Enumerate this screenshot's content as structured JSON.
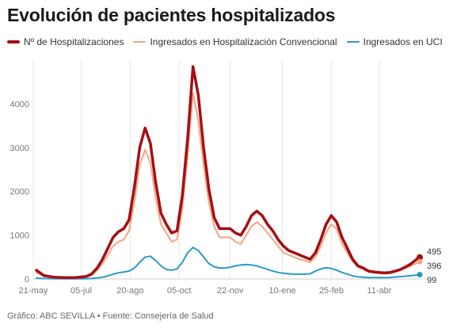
{
  "title": "Evolución de pacientes hospitalizados",
  "source": "Gráfico: ABC SEVILLA • Fuente: Consejería de Salud",
  "chart_data": {
    "type": "line",
    "title": "Evolución de pacientes hospitalizados",
    "xlabel": "",
    "ylabel": "",
    "ylim": [
      0,
      5000
    ],
    "y_ticks": [
      0,
      1000,
      2000,
      3000,
      4000
    ],
    "x_ticks": [
      {
        "label": "21-may",
        "day": 0
      },
      {
        "label": "05-jul",
        "day": 45
      },
      {
        "label": "20-ago",
        "day": 91
      },
      {
        "label": "05-oct",
        "day": 137
      },
      {
        "label": "22-nov",
        "day": 185
      },
      {
        "label": "10-ene",
        "day": 234
      },
      {
        "label": "25-feb",
        "day": 280
      },
      {
        "label": "11-abr",
        "day": 325
      }
    ],
    "grid": "vertical",
    "legend_position": "top",
    "x": [
      3,
      10,
      20,
      30,
      40,
      50,
      55,
      60,
      65,
      70,
      75,
      80,
      85,
      90,
      95,
      100,
      105,
      110,
      115,
      120,
      125,
      130,
      135,
      140,
      145,
      150,
      155,
      160,
      165,
      170,
      175,
      180,
      185,
      190,
      195,
      200,
      205,
      210,
      215,
      220,
      225,
      230,
      235,
      240,
      245,
      250,
      255,
      260,
      265,
      270,
      275,
      280,
      285,
      290,
      295,
      300,
      305,
      310,
      315,
      320,
      325,
      330,
      335,
      340,
      345,
      350,
      355,
      360,
      363
    ],
    "series": [
      {
        "name": "Nº de Hospitalizaciones",
        "color": "#a50f15",
        "values": [
          200,
          80,
          40,
          30,
          35,
          60,
          120,
          250,
          450,
          700,
          950,
          1080,
          1150,
          1350,
          2100,
          3000,
          3450,
          3100,
          2200,
          1500,
          1250,
          1050,
          1100,
          1900,
          3200,
          4850,
          4200,
          3000,
          2050,
          1400,
          1150,
          1150,
          1150,
          1050,
          1000,
          1200,
          1450,
          1550,
          1450,
          1250,
          1100,
          900,
          750,
          650,
          600,
          550,
          500,
          450,
          600,
          900,
          1250,
          1450,
          1300,
          950,
          700,
          450,
          300,
          250,
          180,
          160,
          150,
          140,
          150,
          180,
          220,
          280,
          350,
          450,
          495
        ]
      },
      {
        "name": "Ingresados en Hospitalización Convencional",
        "color": "#f4a582",
        "values": [
          150,
          60,
          30,
          25,
          25,
          45,
          90,
          200,
          350,
          550,
          750,
          850,
          900,
          1100,
          1750,
          2600,
          2950,
          2650,
          1850,
          1250,
          1050,
          850,
          900,
          1600,
          2800,
          4250,
          3600,
          2600,
          1750,
          1200,
          950,
          950,
          950,
          850,
          800,
          1000,
          1200,
          1300,
          1200,
          1050,
          900,
          750,
          600,
          550,
          500,
          450,
          420,
          380,
          500,
          750,
          1050,
          1250,
          1150,
          800,
          600,
          400,
          270,
          220,
          160,
          140,
          130,
          120,
          130,
          160,
          200,
          250,
          300,
          360,
          396
        ]
      },
      {
        "name": "Ingresados en UCI",
        "color": "#2b9ac4",
        "values": [
          20,
          10,
          8,
          5,
          5,
          8,
          15,
          25,
          40,
          70,
          110,
          140,
          160,
          180,
          250,
          380,
          500,
          520,
          420,
          300,
          220,
          200,
          230,
          380,
          600,
          720,
          650,
          500,
          350,
          280,
          250,
          250,
          270,
          300,
          320,
          330,
          320,
          300,
          260,
          220,
          180,
          150,
          130,
          120,
          110,
          110,
          110,
          120,
          180,
          230,
          260,
          240,
          200,
          150,
          110,
          70,
          50,
          40,
          30,
          30,
          30,
          30,
          35,
          45,
          55,
          65,
          75,
          90,
          99
        ]
      }
    ],
    "end_labels": [
      "495",
      "396",
      "99"
    ]
  }
}
